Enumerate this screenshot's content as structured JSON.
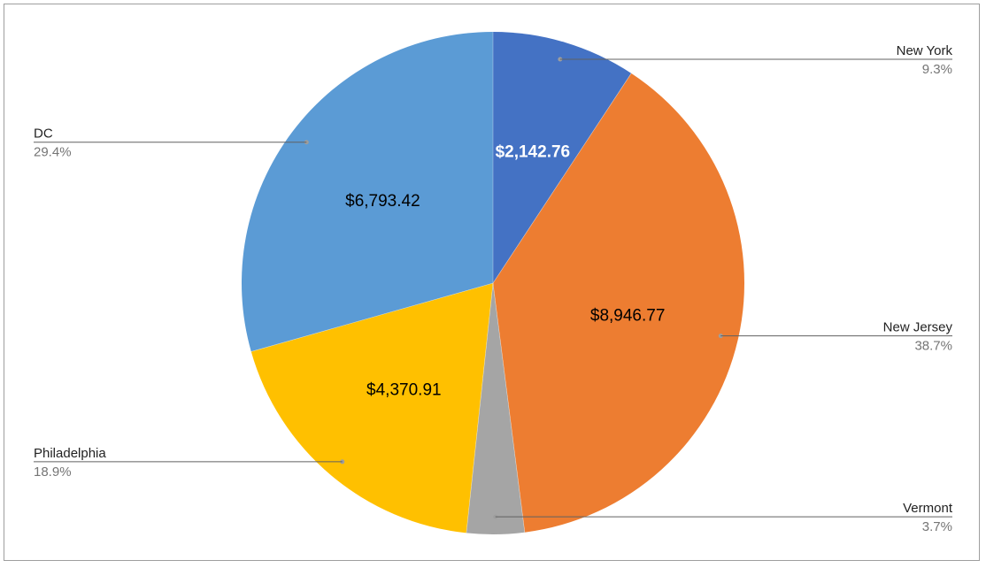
{
  "chart_data": {
    "type": "pie",
    "title": "",
    "start_angle_deg": 0,
    "direction": "clockwise",
    "slices": [
      {
        "label": "New York",
        "value": 2142.76,
        "value_label": "$2,142.76",
        "percent_label": "9.3%",
        "color": "#4472c4",
        "value_label_color": "#ffffff"
      },
      {
        "label": "New Jersey",
        "value": 8946.77,
        "value_label": "$8,946.77",
        "percent_label": "38.7%",
        "color": "#ed7d31",
        "value_label_color": "#000000"
      },
      {
        "label": "Vermont",
        "value": 857.0,
        "value_label": "",
        "percent_label": "3.7%",
        "color": "#a5a5a5",
        "value_label_color": "#000000"
      },
      {
        "label": "Philadelphia",
        "value": 4370.91,
        "value_label": "$4,370.91",
        "percent_label": "18.9%",
        "color": "#ffc000",
        "value_label_color": "#000000"
      },
      {
        "label": "DC",
        "value": 6793.42,
        "value_label": "$6,793.42",
        "percent_label": "29.4%",
        "color": "#5b9bd5",
        "value_label_color": "#000000"
      }
    ],
    "legend": "callout-labels"
  }
}
